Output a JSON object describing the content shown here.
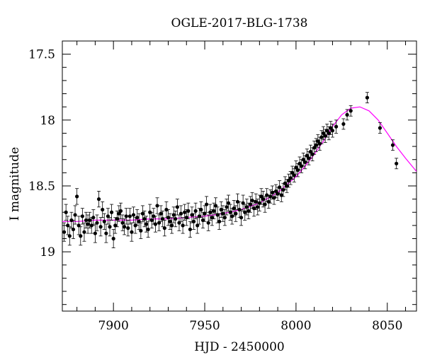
{
  "chart_data": {
    "type": "scatter",
    "title": "OGLE-2017-BLG-1738",
    "xlabel": "HJD - 2450000",
    "ylabel": "I magnitude",
    "xlim": [
      7872,
      8066
    ],
    "ylim": [
      19.45,
      17.4
    ],
    "y_inverted": true,
    "grid": false,
    "x_ticks": [
      7900,
      7950,
      8000,
      8050
    ],
    "x_tick_labels": [
      "7900",
      "7950",
      "8000",
      "8050"
    ],
    "y_ticks": [
      17.5,
      18,
      18.5,
      19
    ],
    "y_tick_labels": [
      "17.5",
      "18",
      "18.5",
      "19"
    ],
    "colors": {
      "points": "#000000",
      "model": "#ff00ff"
    },
    "series": [
      {
        "kind": "points_with_errorbars",
        "x": [
          7873,
          7874,
          7875,
          7876,
          7877,
          7878,
          7879,
          7880,
          7881,
          7882,
          7883,
          7884,
          7885,
          7886,
          7887,
          7888,
          7889,
          7890,
          7891,
          7892,
          7893,
          7894,
          7895,
          7896,
          7897,
          7898,
          7899,
          7900,
          7901,
          7902,
          7903,
          7904,
          7905,
          7906,
          7907,
          7908,
          7909,
          7910,
          7911,
          7912,
          7913,
          7914,
          7915,
          7916,
          7917,
          7918,
          7919,
          7920,
          7921,
          7922,
          7923,
          7924,
          7925,
          7926,
          7927,
          7928,
          7929,
          7930,
          7931,
          7932,
          7933,
          7934,
          7935,
          7936,
          7937,
          7938,
          7939,
          7940,
          7941,
          7942,
          7943,
          7944,
          7945,
          7946,
          7947,
          7948,
          7949,
          7950,
          7951,
          7952,
          7953,
          7954,
          7955,
          7956,
          7957,
          7958,
          7959,
          7960,
          7961,
          7962,
          7963,
          7964,
          7965,
          7966,
          7967,
          7968,
          7969,
          7970,
          7971,
          7972,
          7973,
          7974,
          7975,
          7976,
          7977,
          7978,
          7979,
          7980,
          7981,
          7982,
          7983,
          7984,
          7985,
          7986,
          7987,
          7988,
          7989,
          7990,
          7991,
          7992,
          7993,
          7994,
          7995,
          7996,
          7997,
          7998,
          7999,
          8000,
          8001,
          8002,
          8003,
          8004,
          8005,
          8006,
          8007,
          8008,
          8009,
          8010,
          8011,
          8012,
          8013,
          8014,
          8015,
          8016,
          8017,
          8018,
          8019,
          8020,
          8022,
          8026,
          8028,
          8030,
          8039,
          8046,
          8053,
          8055
        ],
        "y": [
          18.85,
          18.7,
          18.8,
          18.88,
          18.76,
          18.83,
          18.72,
          18.58,
          18.8,
          18.88,
          18.73,
          18.85,
          18.76,
          18.79,
          18.76,
          18.8,
          18.74,
          18.86,
          18.78,
          18.6,
          18.81,
          18.68,
          18.77,
          18.86,
          18.73,
          18.81,
          18.7,
          18.9,
          18.8,
          18.75,
          18.71,
          18.69,
          18.78,
          18.81,
          18.73,
          18.82,
          18.73,
          18.85,
          18.72,
          18.8,
          18.74,
          18.77,
          18.84,
          18.71,
          18.75,
          18.79,
          18.83,
          18.7,
          18.76,
          18.73,
          18.79,
          18.65,
          18.78,
          18.71,
          18.75,
          18.82,
          18.68,
          18.74,
          18.77,
          18.8,
          18.72,
          18.75,
          18.66,
          18.78,
          18.71,
          18.8,
          18.7,
          18.74,
          18.69,
          18.83,
          18.72,
          18.77,
          18.69,
          18.8,
          18.73,
          18.68,
          18.76,
          18.71,
          18.64,
          18.78,
          18.7,
          18.74,
          18.69,
          18.65,
          18.72,
          18.77,
          18.68,
          18.71,
          18.74,
          18.66,
          18.63,
          18.7,
          18.73,
          18.67,
          18.71,
          18.62,
          18.68,
          18.74,
          18.63,
          18.7,
          18.66,
          18.69,
          18.64,
          18.61,
          18.67,
          18.62,
          18.66,
          18.63,
          18.58,
          18.6,
          18.64,
          18.57,
          18.62,
          18.58,
          18.55,
          18.59,
          18.54,
          18.56,
          18.51,
          18.57,
          18.53,
          18.48,
          18.5,
          18.46,
          18.44,
          18.4,
          18.42,
          18.36,
          18.38,
          18.33,
          18.35,
          18.3,
          18.32,
          18.27,
          18.29,
          18.24,
          18.26,
          18.21,
          18.19,
          18.16,
          18.18,
          18.13,
          18.1,
          18.12,
          18.08,
          18.1,
          18.06,
          18.08,
          18.05,
          18.03,
          17.96,
          17.93,
          17.83,
          18.06,
          18.19,
          18.33
        ],
        "error": [
          0.07,
          0.06,
          0.07,
          0.07,
          0.06,
          0.07,
          0.07,
          0.06,
          0.07,
          0.07,
          0.06,
          0.07,
          0.06,
          0.07,
          0.06,
          0.06,
          0.06,
          0.07,
          0.06,
          0.06,
          0.07,
          0.06,
          0.06,
          0.07,
          0.06,
          0.07,
          0.06,
          0.07,
          0.06,
          0.06,
          0.06,
          0.06,
          0.06,
          0.06,
          0.06,
          0.06,
          0.06,
          0.07,
          0.06,
          0.06,
          0.06,
          0.06,
          0.06,
          0.06,
          0.06,
          0.06,
          0.06,
          0.06,
          0.06,
          0.06,
          0.06,
          0.06,
          0.06,
          0.06,
          0.06,
          0.06,
          0.06,
          0.06,
          0.06,
          0.06,
          0.06,
          0.06,
          0.06,
          0.06,
          0.06,
          0.06,
          0.06,
          0.06,
          0.06,
          0.06,
          0.06,
          0.06,
          0.06,
          0.06,
          0.06,
          0.06,
          0.06,
          0.06,
          0.06,
          0.06,
          0.06,
          0.06,
          0.06,
          0.06,
          0.06,
          0.06,
          0.06,
          0.06,
          0.06,
          0.06,
          0.06,
          0.06,
          0.06,
          0.06,
          0.06,
          0.06,
          0.06,
          0.06,
          0.06,
          0.06,
          0.06,
          0.06,
          0.06,
          0.06,
          0.06,
          0.06,
          0.06,
          0.06,
          0.06,
          0.06,
          0.06,
          0.05,
          0.05,
          0.05,
          0.05,
          0.05,
          0.05,
          0.05,
          0.05,
          0.05,
          0.05,
          0.05,
          0.05,
          0.05,
          0.05,
          0.05,
          0.05,
          0.05,
          0.05,
          0.05,
          0.05,
          0.05,
          0.05,
          0.05,
          0.05,
          0.05,
          0.05,
          0.05,
          0.05,
          0.05,
          0.05,
          0.05,
          0.05,
          0.05,
          0.05,
          0.05,
          0.05,
          0.05,
          0.05,
          0.04,
          0.04,
          0.04,
          0.04,
          0.04,
          0.04,
          0.04
        ]
      },
      {
        "kind": "model_curve",
        "x": [
          7872,
          7880,
          7890,
          7900,
          7910,
          7920,
          7930,
          7940,
          7950,
          7960,
          7970,
          7980,
          7990,
          8000,
          8005,
          8010,
          8015,
          8020,
          8025,
          8030,
          8035,
          8040,
          8045,
          8050,
          8055,
          8060,
          8066
        ],
        "y": [
          18.77,
          18.77,
          18.76,
          18.76,
          18.76,
          18.75,
          18.75,
          18.74,
          18.73,
          18.71,
          18.68,
          18.63,
          18.55,
          18.43,
          18.35,
          18.26,
          18.16,
          18.05,
          17.96,
          17.91,
          17.9,
          17.93,
          18.0,
          18.1,
          18.2,
          18.29,
          18.39
        ]
      }
    ]
  }
}
